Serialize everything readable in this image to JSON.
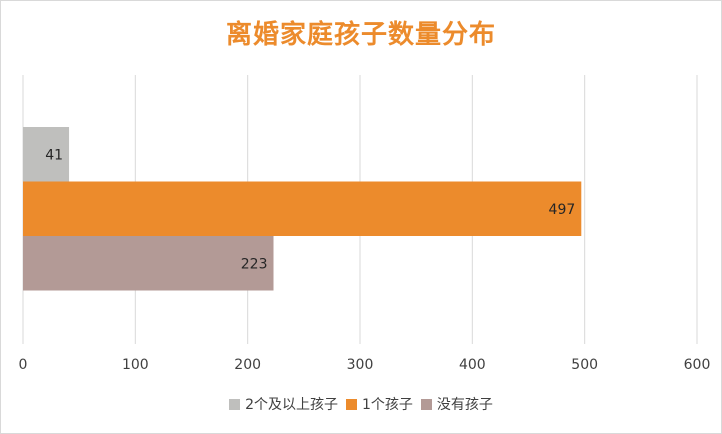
{
  "chart_data": {
    "type": "bar",
    "orientation": "horizontal",
    "title": "离婚家庭孩子数量分布",
    "xlabel": "",
    "ylabel": "",
    "xlim": [
      0,
      600
    ],
    "xticks": [
      0,
      100,
      200,
      300,
      400,
      500,
      600
    ],
    "grid": true,
    "legend_position": "bottom",
    "series": [
      {
        "name": "2个及以上孩子",
        "value": 41,
        "label": "41",
        "color": "#bfbfbd"
      },
      {
        "name": "1个孩子",
        "value": 497,
        "label": "497",
        "color": "#ec8b2c"
      },
      {
        "name": "没有孩子",
        "value": 223,
        "label": "223",
        "color": "#b39a96"
      }
    ]
  }
}
